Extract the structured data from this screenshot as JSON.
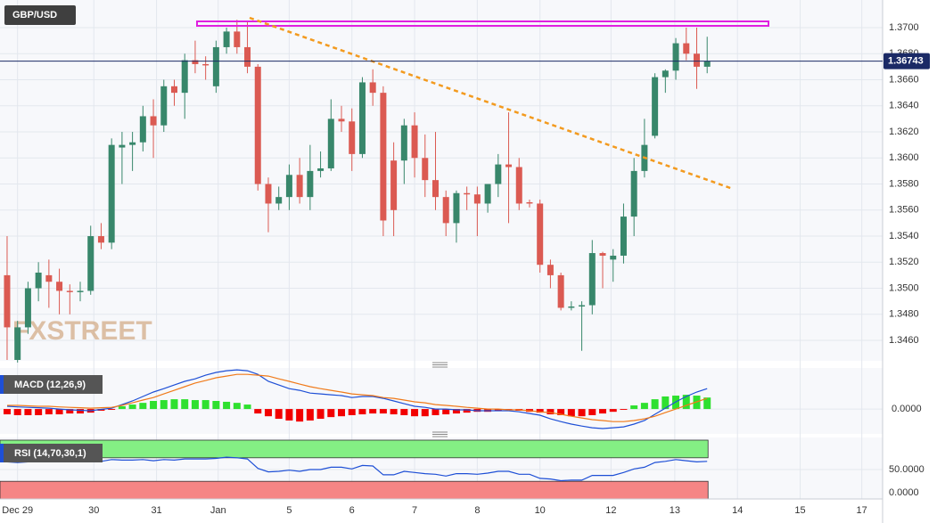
{
  "chart_data": [
    {
      "type": "candlestick",
      "title": "GBP/USD",
      "watermark": "FXSTREET",
      "up_color": "#38876b",
      "down_color": "#db5a52",
      "grid": true,
      "open": [
        1.351,
        1.3445,
        1.347,
        1.35,
        1.351,
        1.3505,
        1.3498,
        1.3497,
        1.3498,
        1.354,
        1.3535,
        1.3608,
        1.361,
        1.3612,
        1.3632,
        1.3625,
        1.3655,
        1.365,
        1.3675,
        1.3672,
        1.3655,
        1.3685,
        1.3697,
        1.3685,
        1.367,
        1.358,
        1.3565,
        1.357,
        1.3587,
        1.357,
        1.359,
        1.3592,
        1.363,
        1.3628,
        1.3603,
        1.3658,
        1.365,
        1.3598,
        1.3598,
        1.3625,
        1.36,
        1.3583,
        1.357,
        1.355,
        1.3573,
        1.3572,
        1.3565,
        1.358,
        1.3595,
        1.3593,
        1.3566,
        1.3565,
        1.3518,
        1.351,
        1.3485,
        1.3486,
        1.3487,
        1.3527,
        1.3522,
        1.3525,
        1.3555,
        1.359,
        1.3617,
        1.3662,
        1.3667,
        1.3688,
        1.368,
        1.367
      ],
      "high": [
        1.354,
        1.3475,
        1.3505,
        1.352,
        1.3522,
        1.3515,
        1.3503,
        1.3505,
        1.3548,
        1.355,
        1.3615,
        1.362,
        1.362,
        1.364,
        1.3645,
        1.366,
        1.366,
        1.368,
        1.369,
        1.3678,
        1.369,
        1.37,
        1.3706,
        1.3705,
        1.3672,
        1.3585,
        1.3578,
        1.3595,
        1.36,
        1.361,
        1.3605,
        1.3645,
        1.364,
        1.3638,
        1.3662,
        1.3668,
        1.3655,
        1.3612,
        1.363,
        1.3635,
        1.3618,
        1.362,
        1.3575,
        1.3575,
        1.3578,
        1.3578,
        1.358,
        1.3603,
        1.3635,
        1.36,
        1.3568,
        1.3568,
        1.3522,
        1.3512,
        1.349,
        1.349,
        1.3537,
        1.3528,
        1.353,
        1.3565,
        1.36,
        1.363,
        1.3665,
        1.3668,
        1.3692,
        1.37,
        1.37,
        1.3693
      ],
      "low": [
        1.3445,
        1.3443,
        1.3465,
        1.349,
        1.3485,
        1.348,
        1.348,
        1.349,
        1.3495,
        1.353,
        1.353,
        1.358,
        1.359,
        1.3605,
        1.36,
        1.362,
        1.364,
        1.363,
        1.3665,
        1.366,
        1.365,
        1.368,
        1.368,
        1.3665,
        1.3575,
        1.3543,
        1.356,
        1.356,
        1.3565,
        1.356,
        1.3585,
        1.359,
        1.362,
        1.359,
        1.36,
        1.364,
        1.354,
        1.354,
        1.358,
        1.3585,
        1.357,
        1.356,
        1.354,
        1.3535,
        1.356,
        1.354,
        1.3558,
        1.357,
        1.355,
        1.356,
        1.3562,
        1.3512,
        1.35,
        1.3483,
        1.3483,
        1.3452,
        1.348,
        1.35,
        1.3505,
        1.3519,
        1.354,
        1.3585,
        1.3615,
        1.365,
        1.366,
        1.3675,
        1.3653,
        1.3665
      ],
      "close": [
        1.347,
        1.347,
        1.35,
        1.3512,
        1.3505,
        1.3498,
        1.3497,
        1.3498,
        1.354,
        1.3535,
        1.361,
        1.361,
        1.3612,
        1.3632,
        1.3625,
        1.3655,
        1.365,
        1.3675,
        1.3672,
        1.3671,
        1.3685,
        1.3697,
        1.3685,
        1.367,
        1.358,
        1.3565,
        1.357,
        1.3587,
        1.357,
        1.359,
        1.3592,
        1.363,
        1.3628,
        1.3603,
        1.3658,
        1.365,
        1.3552,
        1.356,
        1.3625,
        1.36,
        1.3583,
        1.357,
        1.355,
        1.3573,
        1.3572,
        1.3565,
        1.358,
        1.3595,
        1.3593,
        1.3565,
        1.3565,
        1.3518,
        1.351,
        1.3485,
        1.3486,
        1.3487,
        1.3527,
        1.3525,
        1.3525,
        1.3555,
        1.359,
        1.361,
        1.3662,
        1.3667,
        1.3688,
        1.368,
        1.367,
        1.36743
      ],
      "ylim": [
        1.34443,
        1.37212
      ],
      "yticks": [
        {
          "value": 1.346,
          "label": "1.3460"
        },
        {
          "value": 1.348,
          "label": "1.3480"
        },
        {
          "value": 1.35,
          "label": "1.3500"
        },
        {
          "value": 1.352,
          "label": "1.3520"
        },
        {
          "value": 1.354,
          "label": "1.3540"
        },
        {
          "value": 1.356,
          "label": "1.3560"
        },
        {
          "value": 1.358,
          "label": "1.3580"
        },
        {
          "value": 1.36,
          "label": "1.3600"
        },
        {
          "value": 1.362,
          "label": "1.3620"
        },
        {
          "value": 1.364,
          "label": "1.3640"
        },
        {
          "value": 1.366,
          "label": "1.3660"
        },
        {
          "value": 1.368,
          "label": "1.3680"
        },
        {
          "value": 1.37,
          "label": "1.3700"
        }
      ],
      "xlim": [
        -0.68,
        83.79
      ],
      "xticks": [
        {
          "value": 1,
          "label": "Dec 29"
        },
        {
          "value": 8.3,
          "label": "30"
        },
        {
          "value": 14.3,
          "label": "31"
        },
        {
          "value": 20.2,
          "label": "Jan"
        },
        {
          "value": 27,
          "label": "5"
        },
        {
          "value": 33,
          "label": "6"
        },
        {
          "value": 39,
          "label": "7"
        },
        {
          "value": 45,
          "label": "8"
        },
        {
          "value": 51,
          "label": "10"
        },
        {
          "value": 57.8,
          "label": "12"
        },
        {
          "value": 63.9,
          "label": "13"
        },
        {
          "value": 69.9,
          "label": "14"
        },
        {
          "value": 75.9,
          "label": "15"
        },
        {
          "value": 81.8,
          "label": "17"
        }
      ],
      "price_line_color": "#1b2a66"
    },
    {
      "type": "macd",
      "title": "MACD (12,26,9)",
      "series": [
        {
          "color": "#1e4fd6",
          "values": [
            0.00013,
            0.0001,
            8e-05,
            6e-05,
            4e-05,
            0,
            -4e-05,
            -6e-05,
            -8e-05,
            -2e-05,
            4e-05,
            0.00021,
            0.00038,
            0.00059,
            0.0008,
            0.00096,
            0.00113,
            0.0013,
            0.00142,
            0.00159,
            0.00172,
            0.0018,
            0.00184,
            0.0018,
            0.00163,
            0.0013,
            0.00113,
            0.00096,
            0.00088,
            0.00075,
            0.00071,
            0.00067,
            0.00063,
            0.00054,
            0.00059,
            0.00059,
            0.0005,
            0.00038,
            0.00025,
            0.00013,
            8e-05,
            0,
            0,
            -4e-05,
            -4e-05,
            -8e-05,
            -8e-05,
            -8e-05,
            -8e-05,
            -0.00013,
            -0.00021,
            -0.00029,
            -0.00046,
            -0.00059,
            -0.00071,
            -0.0008,
            -0.00088,
            -0.00092,
            -0.00088,
            -0.00084,
            -0.00071,
            -0.00054,
            -0.00025,
            4e-05,
            0.00034,
            0.00059,
            0.0008,
            0.00096
          ]
        },
        {
          "color": "#f07a1a",
          "values": [
            0.00017,
            0.00017,
            0.00015,
            0.00013,
            0.00013,
            0.0001,
            8e-05,
            6e-05,
            4e-05,
            6e-05,
            8e-05,
            0.00017,
            0.00029,
            0.00042,
            0.00054,
            0.00071,
            0.00088,
            0.00105,
            0.00122,
            0.00134,
            0.00147,
            0.00155,
            0.00163,
            0.00163,
            0.00159,
            0.00155,
            0.00142,
            0.0013,
            0.00117,
            0.00105,
            0.00096,
            0.00088,
            0.0008,
            0.00071,
            0.00067,
            0.00063,
            0.00054,
            0.0005,
            0.00042,
            0.00034,
            0.00029,
            0.00021,
            0.00017,
            0.00013,
            8e-05,
            4e-05,
            0,
            0,
            -4e-05,
            -4e-05,
            -8e-05,
            -0.00013,
            -0.00017,
            -0.00025,
            -0.00034,
            -0.00042,
            -0.0005,
            -0.00054,
            -0.00059,
            -0.00059,
            -0.00054,
            -0.00046,
            -0.00034,
            -0.00017,
            0,
            0.00017,
            0.00034,
            0.0005
          ]
        }
      ],
      "histogram": {
        "up_color": "#2fe02f",
        "down_color": "#f20000",
        "values": [
          -0.00025,
          -0.00029,
          -0.00029,
          -0.00029,
          -0.00025,
          -0.00025,
          -0.00021,
          -0.00021,
          -0.00017,
          -8e-05,
          -4e-05,
          0.00013,
          0.00021,
          0.00029,
          0.00038,
          0.00042,
          0.00046,
          0.00046,
          0.00042,
          0.00042,
          0.00038,
          0.00034,
          0.00029,
          0.00021,
          -0.00021,
          -0.00034,
          -0.00046,
          -0.00054,
          -0.00059,
          -0.00054,
          -0.00046,
          -0.00038,
          -0.00034,
          -0.00029,
          -0.00025,
          -0.00021,
          -0.00021,
          -0.00025,
          -0.00029,
          -0.00034,
          -0.00034,
          -0.00029,
          -0.00025,
          -0.00021,
          -0.00017,
          -0.00013,
          -0.00013,
          -8e-05,
          -4e-05,
          -8e-05,
          -0.00013,
          -0.00017,
          -0.00025,
          -0.00029,
          -0.00034,
          -0.00034,
          -0.00029,
          -0.00021,
          -0.00013,
          -4e-05,
          0.00017,
          0.00029,
          0.00046,
          0.00059,
          0.00063,
          0.00067,
          0.00063,
          0.00054
        ]
      },
      "ylim": [
        -0.00117,
        0.00193
      ],
      "yticks": [
        {
          "value": 0,
          "label": "0.0000"
        }
      ]
    },
    {
      "type": "line",
      "title": "RSI (14,70,30,1)",
      "series": [
        {
          "color": "#1e4fd6",
          "values": [
            63,
            62,
            63,
            64,
            64,
            63,
            64,
            63,
            65,
            64,
            67,
            66,
            66,
            67,
            65,
            67,
            66,
            68,
            68,
            68,
            69,
            71,
            70,
            68,
            52,
            46,
            47,
            49,
            47,
            50,
            50,
            54,
            54,
            51,
            57,
            56,
            41,
            41,
            47,
            45,
            43,
            42,
            39,
            43,
            43,
            42,
            44,
            47,
            47,
            42,
            42,
            35,
            34,
            31,
            32,
            32,
            40,
            40,
            40,
            45,
            51,
            54,
            62,
            64,
            67,
            65,
            63,
            64
          ]
        }
      ],
      "bands": [
        {
          "from": 70,
          "to": 100,
          "color": "#84ef84"
        },
        {
          "from": 0,
          "to": 30,
          "color": "#f58585"
        }
      ],
      "ylim": [
        0,
        100
      ],
      "yticks": [
        {
          "value": 0,
          "label": "0.0000"
        },
        {
          "value": 50,
          "label": "50.0000"
        }
      ]
    }
  ]
}
